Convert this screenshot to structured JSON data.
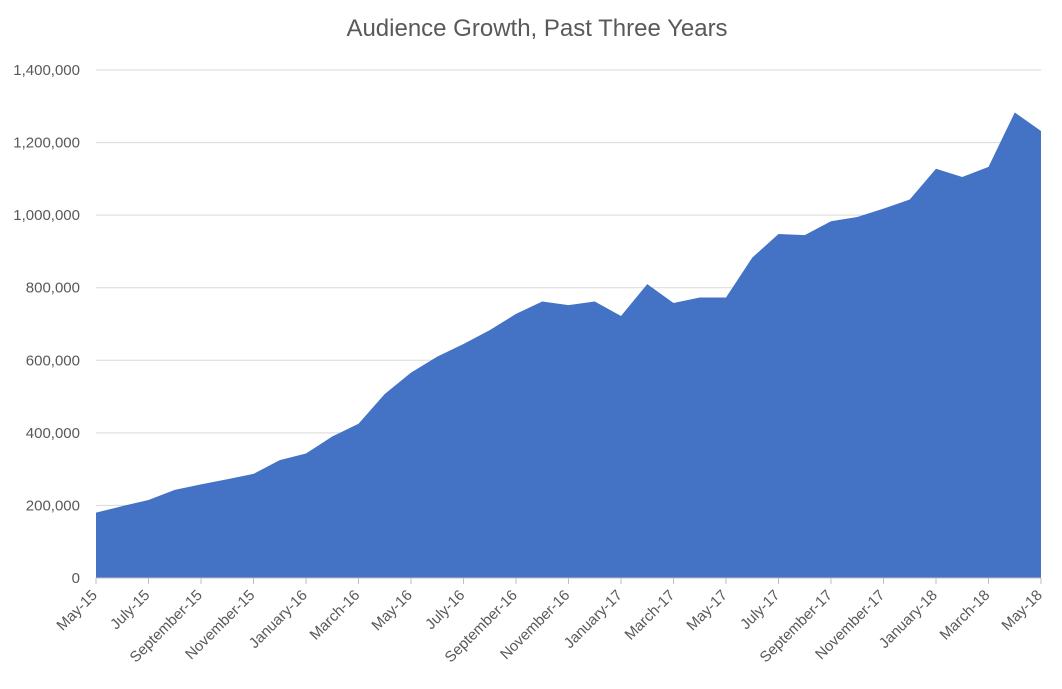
{
  "chart_data": {
    "type": "area",
    "title": "Audience Growth, Past Three Years",
    "xlabel": "",
    "ylabel": "",
    "ylim": [
      0,
      1400000
    ],
    "y_ticks": [
      0,
      200000,
      400000,
      600000,
      800000,
      1000000,
      1200000,
      1400000
    ],
    "y_tick_labels": [
      "0",
      "200,000",
      "400,000",
      "600,000",
      "800,000",
      "1,000,000",
      "1,200,000",
      "1,400,000"
    ],
    "grid": true,
    "color": "#4472C4",
    "x_tick_labels": [
      "May-15",
      "July-15",
      "September-15",
      "November-15",
      "January-16",
      "March-16",
      "May-16",
      "July-16",
      "September-16",
      "November-16",
      "January-17",
      "March-17",
      "May-17",
      "July-17",
      "September-17",
      "November-17",
      "January-18",
      "March-18",
      "May-18"
    ],
    "categories": [
      "May-15",
      "Jun-15",
      "Jul-15",
      "Aug-15",
      "Sep-15",
      "Oct-15",
      "Nov-15",
      "Dec-15",
      "Jan-16",
      "Feb-16",
      "Mar-16",
      "Apr-16",
      "May-16",
      "Jun-16",
      "Jul-16",
      "Aug-16",
      "Sep-16",
      "Oct-16",
      "Nov-16",
      "Dec-16",
      "Jan-17",
      "Feb-17",
      "Mar-17",
      "Apr-17",
      "May-17",
      "Jun-17",
      "Jul-17",
      "Aug-17",
      "Sep-17",
      "Oct-17",
      "Nov-17",
      "Dec-17",
      "Jan-18",
      "Feb-18",
      "Mar-18",
      "Apr-18",
      "May-18"
    ],
    "series": [
      {
        "name": "Audience",
        "values": [
          180000,
          198000,
          215000,
          243000,
          258000,
          272000,
          287000,
          325000,
          343000,
          390000,
          425000,
          507000,
          566000,
          610000,
          645000,
          683000,
          728000,
          762000,
          752000,
          762000,
          722000,
          810000,
          758000,
          773000,
          773000,
          883000,
          948000,
          945000,
          983000,
          995000,
          1018000,
          1043000,
          1128000,
          1105000,
          1133000,
          1283000,
          1232000
        ]
      }
    ]
  }
}
